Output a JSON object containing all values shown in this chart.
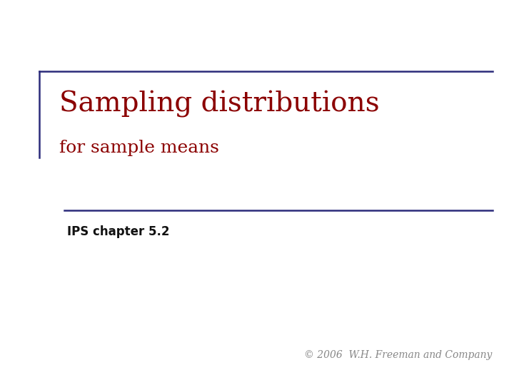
{
  "title_line1": "Sampling distributions",
  "title_line2": "for sample means",
  "subtitle": "IPS chapter 5.2",
  "copyright": "© 2006  W.H. Freeman and Company",
  "title_color": "#8B0000",
  "subtitle_color": "#111111",
  "copyright_color": "#888888",
  "accent_color": "#2B2B7A",
  "bg_color": "#ffffff",
  "title_fontsize": 28,
  "subtitle_fontsize": 12,
  "copyright_fontsize": 10,
  "line_width": 1.8
}
